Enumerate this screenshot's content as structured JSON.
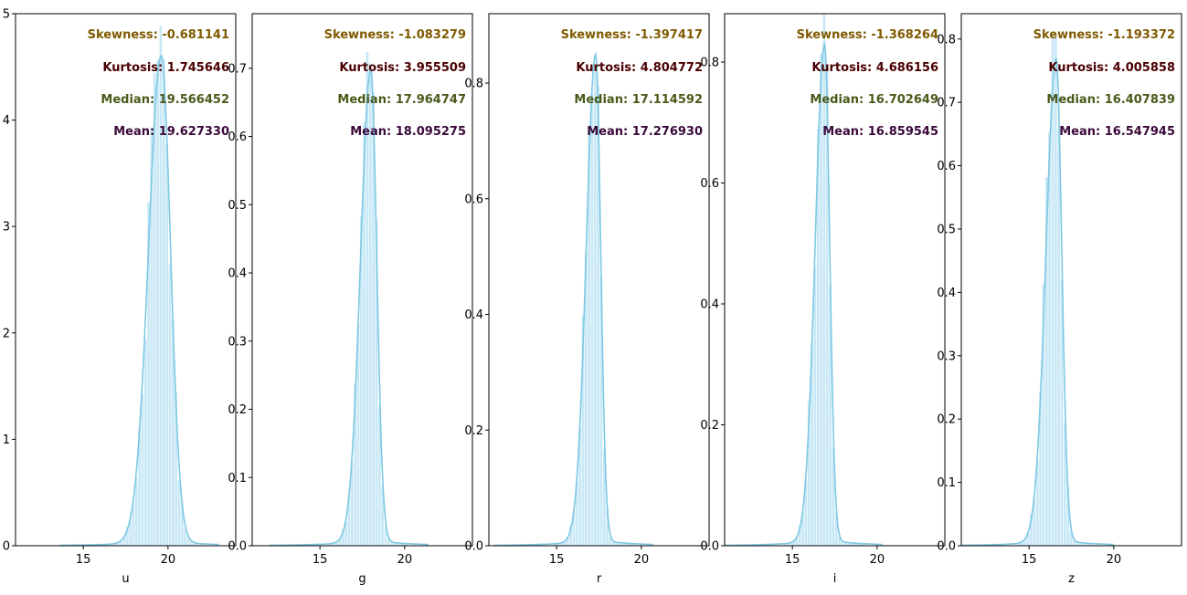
{
  "colors": {
    "bar_fill": "#bfe4f4",
    "kde_line": "#7ec8e3",
    "axis": "#000000",
    "skew": "#7f5a00",
    "kurt": "#4a0000",
    "median": "#4a5a1a",
    "mean": "#3a0a3a"
  },
  "chart_data": [
    {
      "type": "histogram+kde",
      "xlabel": "u",
      "xlim": [
        11,
        24
      ],
      "ylim": [
        0,
        5.0
      ],
      "xticks": [
        15,
        20
      ],
      "yticks": [
        0,
        1,
        2,
        3,
        4,
        5
      ],
      "ytick_labels": [
        "0",
        "1",
        "2",
        "3",
        "4",
        "5"
      ],
      "mode": 19.6,
      "sigma_left": 0.75,
      "sigma_right": 0.55,
      "peak_density": 4.55,
      "stats": {
        "skew": "Skewness: -0.681141",
        "kurt": "Kurtosis: 1.745646",
        "median": "Median: 19.566452",
        "mean": "Mean: 19.627330"
      }
    },
    {
      "type": "histogram+kde",
      "xlabel": "g",
      "xlim": [
        11,
        24
      ],
      "ylim": [
        0,
        0.78
      ],
      "xticks": [
        15,
        20
      ],
      "yticks": [
        0,
        0.1,
        0.2,
        0.3,
        0.4,
        0.5,
        0.6,
        0.7
      ],
      "ytick_labels": [
        "0.0",
        "0.1",
        "0.2",
        "0.3",
        "0.4",
        "0.5",
        "0.6",
        "0.7"
      ],
      "mode": 18.0,
      "sigma_left": 0.6,
      "sigma_right": 0.35,
      "peak_density": 0.69,
      "stats": {
        "skew": "Skewness: -1.083279",
        "kurt": "Kurtosis: 3.955509",
        "median": "Median: 17.964747",
        "mean": "Mean: 18.095275"
      }
    },
    {
      "type": "histogram+kde",
      "xlabel": "r",
      "xlim": [
        11,
        24
      ],
      "ylim": [
        0,
        0.92
      ],
      "xticks": [
        15,
        20
      ],
      "yticks": [
        0,
        0.2,
        0.4,
        0.6,
        0.8
      ],
      "ytick_labels": [
        "0.0",
        "0.2",
        "0.4",
        "0.6",
        "0.8"
      ],
      "mode": 17.3,
      "sigma_left": 0.55,
      "sigma_right": 0.3,
      "peak_density": 0.84,
      "stats": {
        "skew": "Skewness: -1.397417",
        "kurt": "Kurtosis: 4.804772",
        "median": "Median: 17.114592",
        "mean": "Mean: 17.276930"
      }
    },
    {
      "type": "histogram+kde",
      "xlabel": "i",
      "xlim": [
        11,
        24
      ],
      "ylim": [
        0,
        0.88
      ],
      "xticks": [
        15,
        20
      ],
      "yticks": [
        0,
        0.2,
        0.4,
        0.6,
        0.8
      ],
      "ytick_labels": [
        "0.0",
        "0.2",
        "0.4",
        "0.6",
        "0.8"
      ],
      "mode": 16.9,
      "sigma_left": 0.55,
      "sigma_right": 0.3,
      "peak_density": 0.82,
      "stats": {
        "skew": "Skewness: -1.368264",
        "kurt": "Kurtosis: 4.686156",
        "median": "Median: 16.702649",
        "mean": "Mean: 16.859545"
      }
    },
    {
      "type": "histogram+kde",
      "xlabel": "z",
      "xlim": [
        11,
        24
      ],
      "ylim": [
        0,
        0.84
      ],
      "xticks": [
        15,
        20
      ],
      "yticks": [
        0,
        0.1,
        0.2,
        0.3,
        0.4,
        0.5,
        0.6,
        0.7,
        0.8
      ],
      "ytick_labels": [
        "0.0",
        "0.1",
        "0.2",
        "0.3",
        "0.4",
        "0.5",
        "0.6",
        "0.7",
        "0.8"
      ],
      "mode": 16.6,
      "sigma_left": 0.6,
      "sigma_right": 0.33,
      "peak_density": 0.76,
      "stats": {
        "skew": "Skewness: -1.193372",
        "kurt": "Kurtosis: 4.005858",
        "median": "Median: 16.407839",
        "mean": "Mean: 16.547945"
      }
    }
  ]
}
